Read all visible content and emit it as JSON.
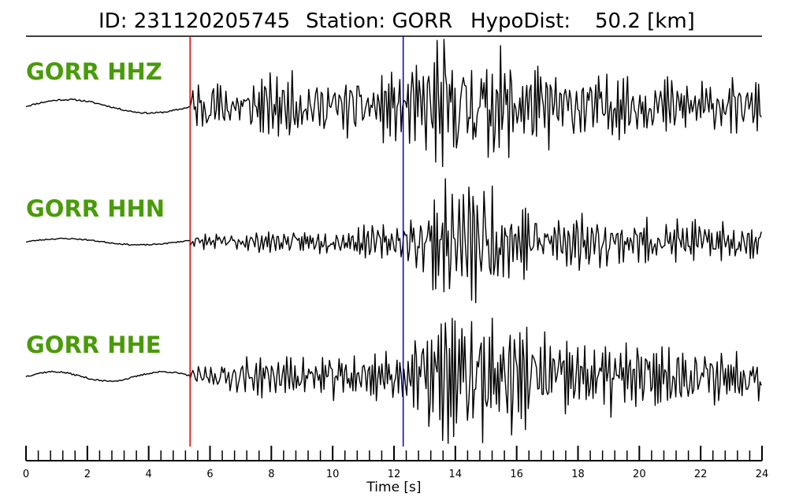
{
  "header": {
    "id_label": "ID: 231120205745",
    "station_label": "Station: GORR",
    "hypodist_label": "HypoDist:",
    "hypodist_value": "50.2 [km]"
  },
  "colors": {
    "channel_label": "#4a9a0a",
    "p_pick": "#e00000",
    "s_pick": "#0000cc",
    "trace": "#000000"
  },
  "chart_data": {
    "type": "line",
    "title": "ID: 231120205745   Station: GORR   HypoDist:    50.2 [km]",
    "xlabel": "Time [s]",
    "xlim": [
      0,
      24
    ],
    "x_ticks_major": [
      0,
      2,
      4,
      6,
      8,
      10,
      12,
      14,
      16,
      18,
      20,
      22,
      24
    ],
    "x_minor_step": 0.4,
    "picks": [
      {
        "name": "P",
        "time": 5.35,
        "color": "#e00000"
      },
      {
        "name": "S",
        "time": 12.3,
        "color": "#0000cc"
      }
    ],
    "series": [
      {
        "name": "GORR HHZ",
        "pre_noise": {
          "base": 0.0,
          "swell_amp": 0.1,
          "swell_period": 5.4,
          "jitter": 0.012
        },
        "envelope": [
          [
            5.35,
            0.38
          ],
          [
            8,
            0.42
          ],
          [
            10,
            0.4
          ],
          [
            12.3,
            0.45
          ],
          [
            13.5,
            0.95
          ],
          [
            15,
            0.8
          ],
          [
            17,
            0.55
          ],
          [
            20,
            0.45
          ],
          [
            24,
            0.32
          ]
        ],
        "seed": 11
      },
      {
        "name": "GORR HHN",
        "pre_noise": {
          "base": 0.0,
          "swell_amp": 0.05,
          "swell_period": 5.0,
          "jitter": 0.01
        },
        "envelope": [
          [
            5.35,
            0.1
          ],
          [
            6.5,
            0.14
          ],
          [
            9,
            0.16
          ],
          [
            12.3,
            0.25
          ],
          [
            13.5,
            0.8
          ],
          [
            14.5,
            0.95
          ],
          [
            16,
            0.55
          ],
          [
            19,
            0.35
          ],
          [
            24,
            0.25
          ]
        ],
        "seed": 23
      },
      {
        "name": "GORR HHE",
        "pre_noise": {
          "base": 0.0,
          "swell_amp": 0.07,
          "swell_period": 3.6,
          "jitter": 0.012
        },
        "envelope": [
          [
            5.35,
            0.12
          ],
          [
            7,
            0.25
          ],
          [
            9,
            0.28
          ],
          [
            12.3,
            0.35
          ],
          [
            13.5,
            0.95
          ],
          [
            15,
            0.85
          ],
          [
            17,
            0.6
          ],
          [
            20,
            0.45
          ],
          [
            24,
            0.35
          ]
        ],
        "seed": 37
      }
    ]
  }
}
